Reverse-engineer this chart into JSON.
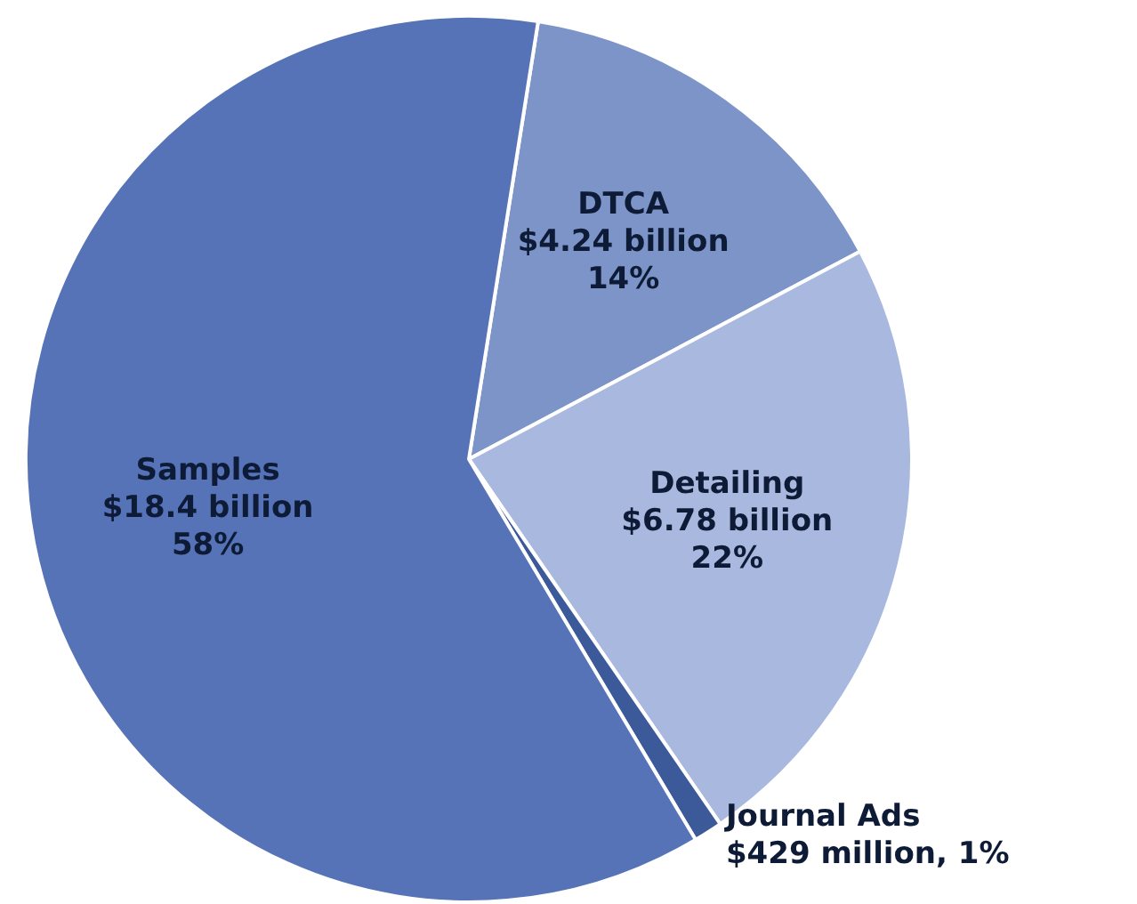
{
  "chart_data": {
    "type": "pie",
    "categories": [
      "DTCA",
      "Detailing",
      "Journal Ads",
      "Samples"
    ],
    "values": [
      14,
      22,
      1,
      58
    ],
    "value_labels": [
      "$4.24 billion\n14%",
      "$6.78 billion\n22%",
      "$429 million, 1%",
      "$18.4 billion\n58%"
    ],
    "colors": [
      "#7d94c8",
      "#a9b8de",
      "#3c5a9a",
      "#5673b7"
    ],
    "legend": false
  }
}
